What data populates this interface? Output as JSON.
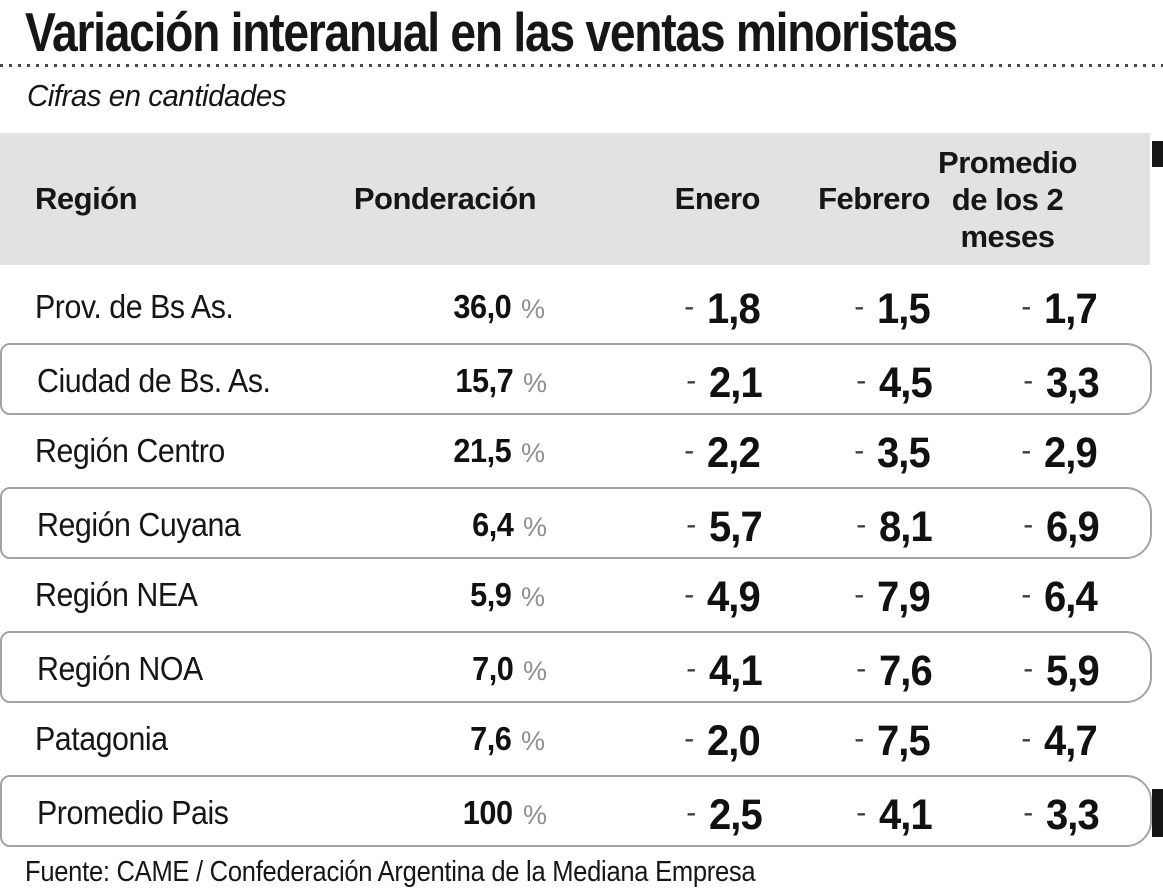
{
  "title": "Variación interanual en las ventas minoristas",
  "subtitle": "Cifras en cantidades",
  "source": "Fuente: CAME / Confederación Argentina de la Mediana Empresa",
  "table": {
    "negative_prefix": "-",
    "percent_sign": "%",
    "headers": {
      "region": "Región",
      "ponderacion": "Ponderación",
      "enero": "Enero",
      "febrero": "Febrero",
      "promedio": "Promedio de los 2 meses"
    },
    "rows": [
      {
        "region": "Prov. de Bs As.",
        "ponderacion": "36,0",
        "enero": "1,8",
        "febrero": "1,5",
        "promedio": "1,7",
        "boxed": false
      },
      {
        "region": "Ciudad de Bs. As.",
        "ponderacion": "15,7",
        "enero": "2,1",
        "febrero": "4,5",
        "promedio": "3,3",
        "boxed": true
      },
      {
        "region": "Región Centro",
        "ponderacion": "21,5",
        "enero": "2,2",
        "febrero": "3,5",
        "promedio": "2,9",
        "boxed": false
      },
      {
        "region": "Región Cuyana",
        "ponderacion": "6,4",
        "enero": "5,7",
        "febrero": "8,1",
        "promedio": "6,9",
        "boxed": true
      },
      {
        "region": "Región NEA",
        "ponderacion": "5,9",
        "enero": "4,9",
        "febrero": "7,9",
        "promedio": "6,4",
        "boxed": false
      },
      {
        "region": "Región NOA",
        "ponderacion": "7,0",
        "enero": "4,1",
        "febrero": "7,6",
        "promedio": "5,9",
        "boxed": true
      },
      {
        "region": "Patagonia",
        "ponderacion": "7,6",
        "enero": "2,0",
        "febrero": "7,5",
        "promedio": "4,7",
        "boxed": false
      },
      {
        "region": "Promedio Pais",
        "ponderacion": "100",
        "enero": "2,5",
        "febrero": "4,1",
        "promedio": "3,3",
        "boxed": true
      }
    ]
  },
  "colors": {
    "header_bg": "#e2e2e2",
    "box_border": "#a4a4a4",
    "text_primary": "#111111",
    "text_muted": "#8f8f8f",
    "edge_tab": "#161616"
  },
  "chart_data": {
    "type": "table",
    "title": "Variación interanual en las ventas minoristas",
    "subtitle": "Cifras en cantidades",
    "columns": [
      "Región",
      "Ponderación",
      "Enero",
      "Febrero",
      "Promedio de los 2 meses"
    ],
    "rows": [
      [
        "Prov. de Bs As.",
        36.0,
        -1.8,
        -1.5,
        -1.7
      ],
      [
        "Ciudad de Bs. As.",
        15.7,
        -2.1,
        -4.5,
        -3.3
      ],
      [
        "Región Centro",
        21.5,
        -2.2,
        -3.5,
        -2.9
      ],
      [
        "Región Cuyana",
        6.4,
        -5.7,
        -8.1,
        -6.9
      ],
      [
        "Región NEA",
        5.9,
        -4.9,
        -7.9,
        -6.4
      ],
      [
        "Región NOA",
        7.0,
        -4.1,
        -7.6,
        -5.9
      ],
      [
        "Patagonia",
        7.6,
        -2.0,
        -7.5,
        -4.7
      ],
      [
        "Promedio Pais",
        100.0,
        -2.5,
        -4.1,
        -3.3
      ]
    ],
    "units": {
      "Ponderación": "%",
      "Enero": "pct_change_yoy",
      "Febrero": "pct_change_yoy",
      "Promedio de los 2 meses": "pct_change_yoy"
    },
    "notes": "All monthly values are negative (year-over-year declines)",
    "source": "Fuente: CAME / Confederación Argentina de la Mediana Empresa"
  }
}
